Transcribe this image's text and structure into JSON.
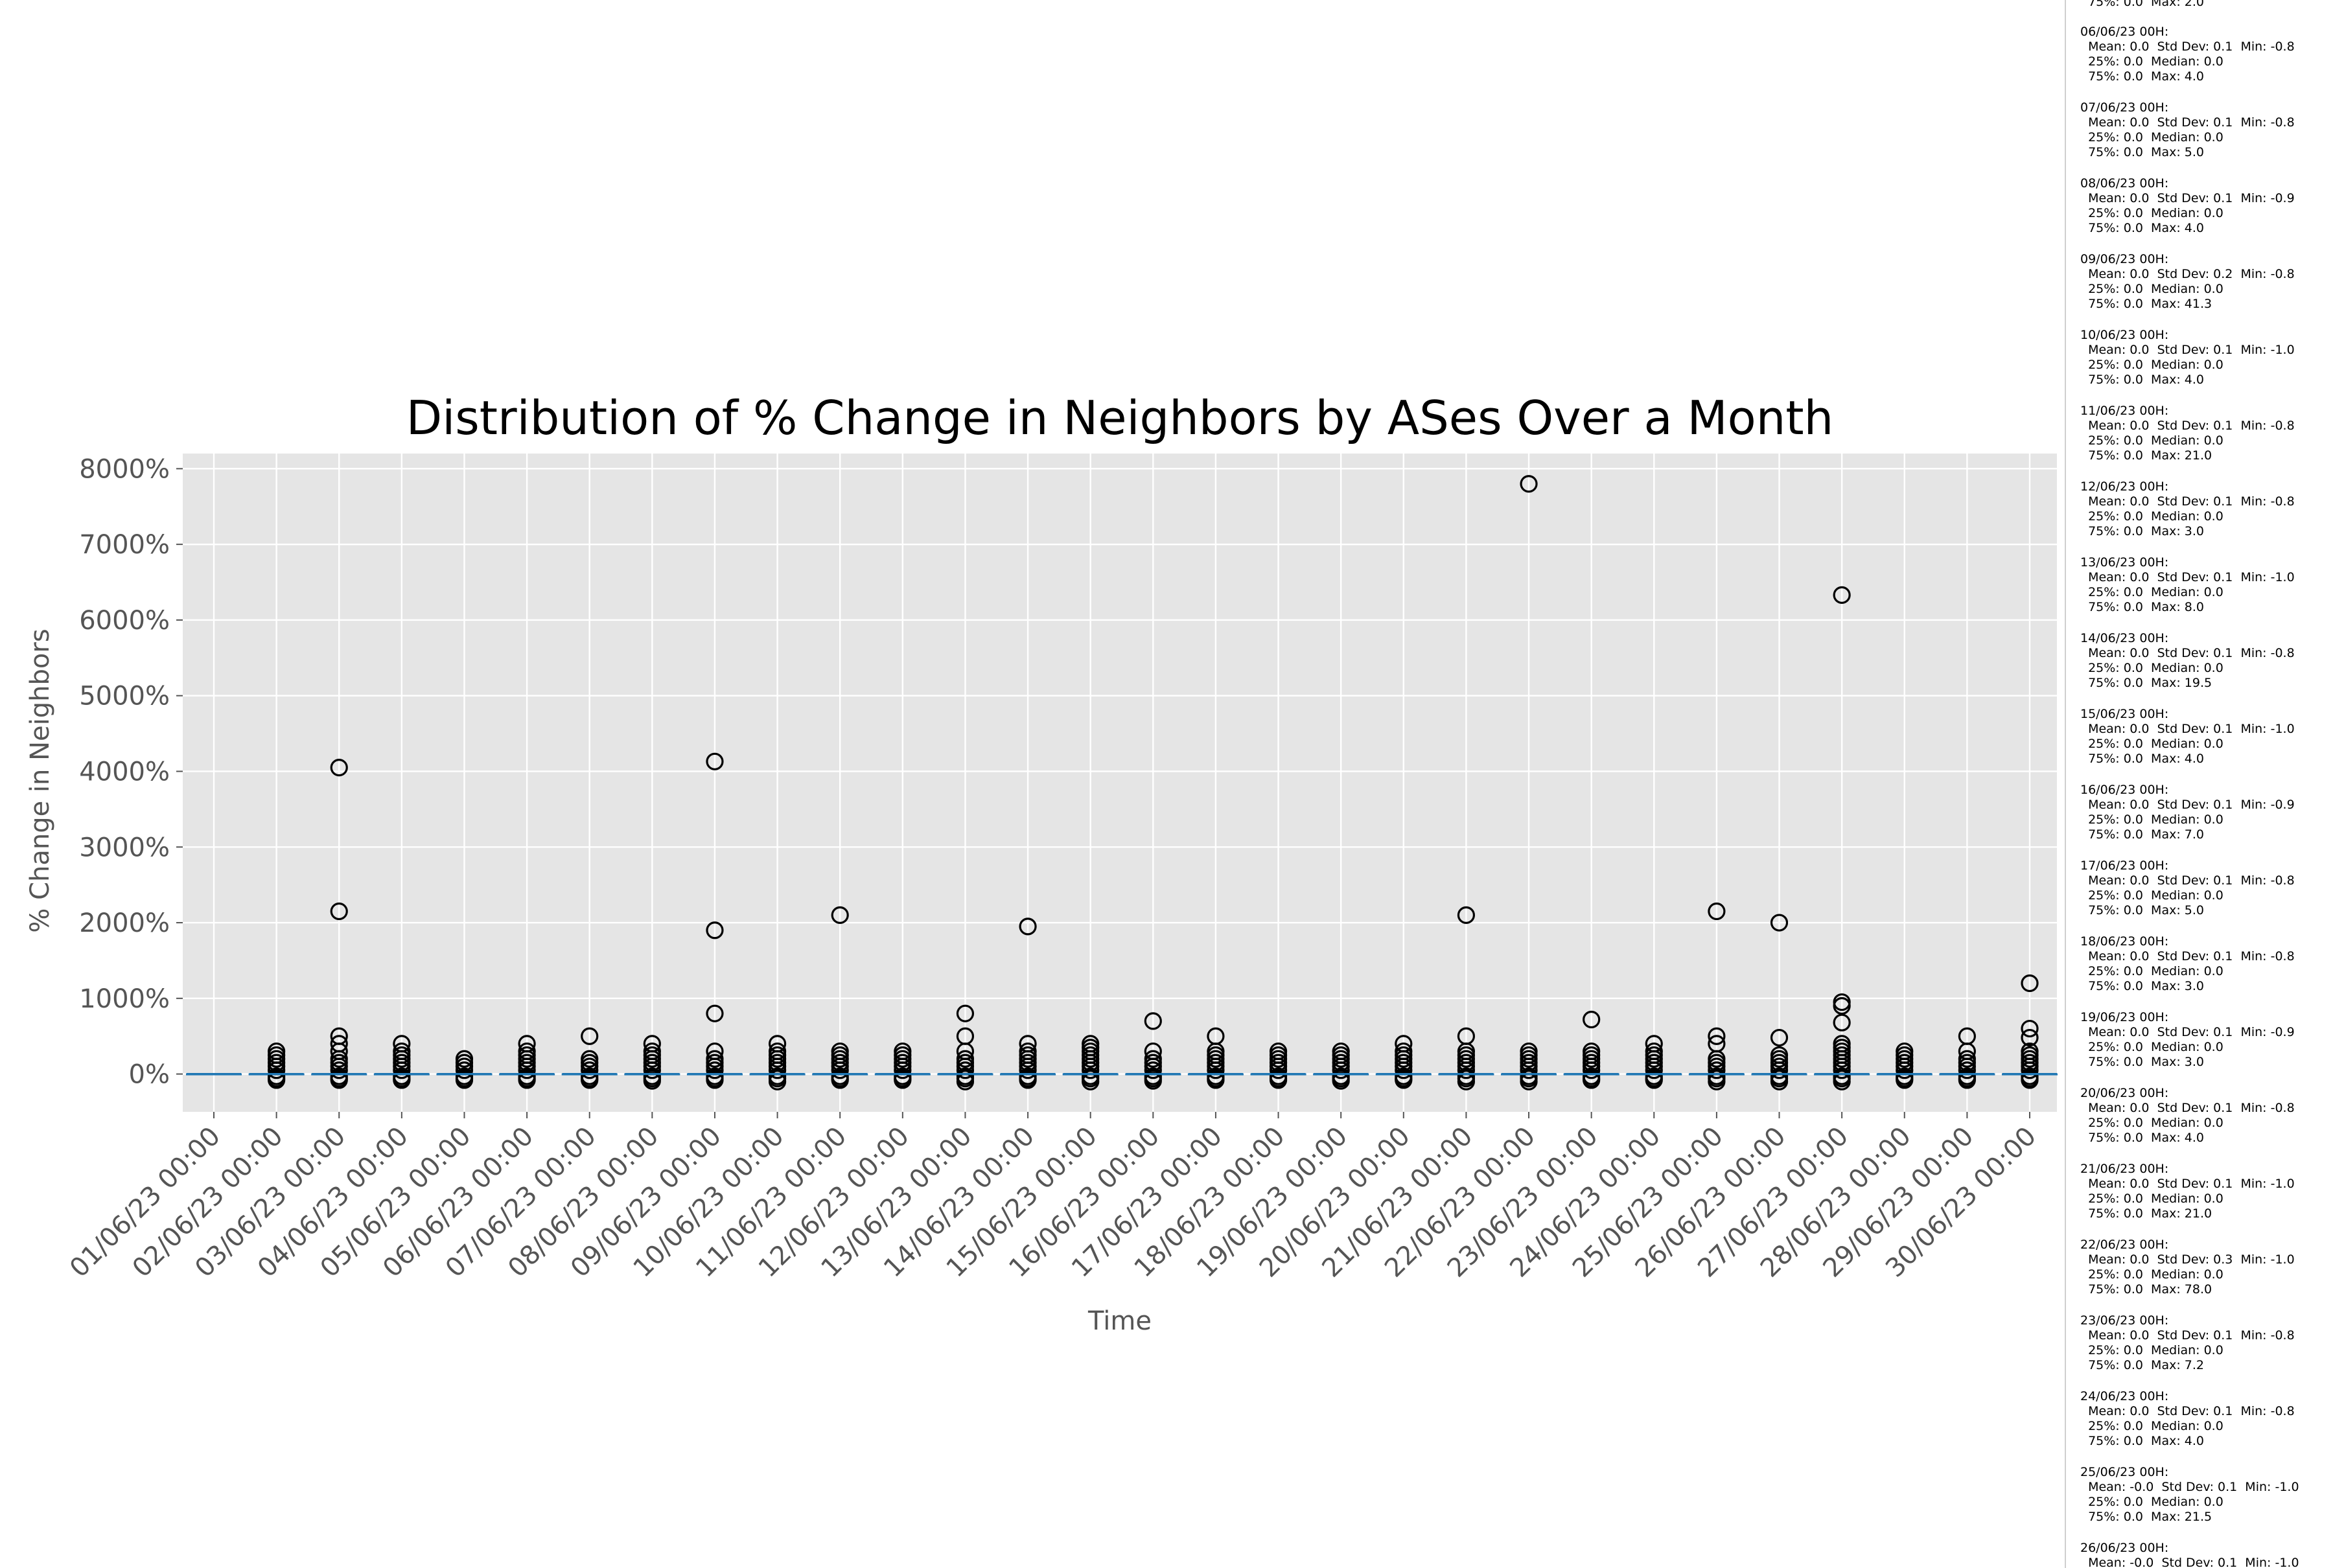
{
  "colors": {
    "plot_background": "#e5e5e5",
    "grid": "#ffffff",
    "median_line": "#1f77b4",
    "box_edge": "#1f77b4",
    "flier_edge": "#000000",
    "tick_text": "#555555"
  },
  "chart_data": {
    "type": "box",
    "title": "Distribution of % Change in Neighbors by ASes Over a Month",
    "xlabel": "Time",
    "ylabel": "% Change in Neighbors",
    "ylim": [
      -500,
      8200
    ],
    "yticks": [
      0,
      1000,
      2000,
      3000,
      4000,
      5000,
      6000,
      7000,
      8000
    ],
    "ytick_labels": [
      "0%",
      "1000%",
      "2000%",
      "3000%",
      "4000%",
      "5000%",
      "6000%",
      "7000%",
      "8000%"
    ],
    "grid": true,
    "categories": [
      "01/06/23 00:00",
      "02/06/23 00:00",
      "03/06/23 00:00",
      "04/06/23 00:00",
      "05/06/23 00:00",
      "06/06/23 00:00",
      "07/06/23 00:00",
      "08/06/23 00:00",
      "09/06/23 00:00",
      "10/06/23 00:00",
      "11/06/23 00:00",
      "12/06/23 00:00",
      "13/06/23 00:00",
      "14/06/23 00:00",
      "15/06/23 00:00",
      "16/06/23 00:00",
      "17/06/23 00:00",
      "18/06/23 00:00",
      "19/06/23 00:00",
      "20/06/23 00:00",
      "21/06/23 00:00",
      "22/06/23 00:00",
      "23/06/23 00:00",
      "24/06/23 00:00",
      "25/06/23 00:00",
      "26/06/23 00:00",
      "27/06/23 00:00",
      "28/06/23 00:00",
      "29/06/23 00:00",
      "30/06/23 00:00"
    ],
    "boxes": [
      {
        "median": 0,
        "q1": 0,
        "q3": 0,
        "whisker_low": 0,
        "whisker_high": 0,
        "fliers": []
      },
      {
        "median": 0,
        "q1": 0,
        "q3": 0,
        "whisker_low": 0,
        "whisker_high": 0,
        "fliers": [
          300,
          250,
          200,
          150,
          100,
          50,
          -30,
          -60,
          -80
        ]
      },
      {
        "median": 0,
        "q1": 0,
        "q3": 0,
        "whisker_low": 0,
        "whisker_high": 0,
        "fliers": [
          4050,
          2150,
          500,
          400,
          300,
          200,
          150,
          100,
          50,
          -30,
          -60,
          -80
        ]
      },
      {
        "median": 0,
        "q1": 0,
        "q3": 0,
        "whisker_low": 0,
        "whisker_high": 0,
        "fliers": [
          400,
          300,
          250,
          200,
          150,
          100,
          50,
          -30,
          -60,
          -80
        ]
      },
      {
        "median": 0,
        "q1": 0,
        "q3": 0,
        "whisker_low": 0,
        "whisker_high": 0,
        "fliers": [
          200,
          150,
          100,
          50,
          -30,
          -60,
          -80
        ]
      },
      {
        "median": 0,
        "q1": 0,
        "q3": 0,
        "whisker_low": 0,
        "whisker_high": 0,
        "fliers": [
          400,
          300,
          250,
          200,
          150,
          100,
          50,
          -30,
          -60,
          -80
        ]
      },
      {
        "median": 0,
        "q1": 0,
        "q3": 0,
        "whisker_low": 0,
        "whisker_high": 0,
        "fliers": [
          500,
          200,
          150,
          100,
          50,
          -30,
          -60,
          -80
        ]
      },
      {
        "median": 0,
        "q1": 0,
        "q3": 0,
        "whisker_low": 0,
        "whisker_high": 0,
        "fliers": [
          400,
          300,
          250,
          200,
          150,
          100,
          50,
          -30,
          -60,
          -90
        ]
      },
      {
        "median": 0,
        "q1": 0,
        "q3": 0,
        "whisker_low": 0,
        "whisker_high": 0,
        "fliers": [
          4130,
          1900,
          800,
          300,
          200,
          150,
          100,
          50,
          -30,
          -60,
          -80
        ]
      },
      {
        "median": 0,
        "q1": 0,
        "q3": 0,
        "whisker_low": 0,
        "whisker_high": 0,
        "fliers": [
          400,
          300,
          250,
          200,
          150,
          100,
          50,
          -30,
          -60,
          -100
        ]
      },
      {
        "median": 0,
        "q1": 0,
        "q3": 0,
        "whisker_low": 0,
        "whisker_high": 0,
        "fliers": [
          2100,
          300,
          250,
          200,
          150,
          100,
          50,
          -30,
          -60,
          -80
        ]
      },
      {
        "median": 0,
        "q1": 0,
        "q3": 0,
        "whisker_low": 0,
        "whisker_high": 0,
        "fliers": [
          300,
          250,
          200,
          150,
          100,
          50,
          -30,
          -60,
          -80
        ]
      },
      {
        "median": 0,
        "q1": 0,
        "q3": 0,
        "whisker_low": 0,
        "whisker_high": 0,
        "fliers": [
          800,
          500,
          300,
          200,
          150,
          100,
          50,
          -30,
          -60,
          -100
        ]
      },
      {
        "median": 0,
        "q1": 0,
        "q3": 0,
        "whisker_low": 0,
        "whisker_high": 0,
        "fliers": [
          1950,
          400,
          300,
          250,
          200,
          150,
          100,
          50,
          -30,
          -60,
          -80
        ]
      },
      {
        "median": 0,
        "q1": 0,
        "q3": 0,
        "whisker_low": 0,
        "whisker_high": 0,
        "fliers": [
          400,
          350,
          300,
          250,
          200,
          150,
          100,
          50,
          -30,
          -60,
          -100
        ]
      },
      {
        "median": 0,
        "q1": 0,
        "q3": 0,
        "whisker_low": 0,
        "whisker_high": 0,
        "fliers": [
          700,
          300,
          200,
          150,
          100,
          50,
          -30,
          -60,
          -90
        ]
      },
      {
        "median": 0,
        "q1": 0,
        "q3": 0,
        "whisker_low": 0,
        "whisker_high": 0,
        "fliers": [
          500,
          300,
          250,
          200,
          150,
          100,
          50,
          -30,
          -60,
          -80
        ]
      },
      {
        "median": 0,
        "q1": 0,
        "q3": 0,
        "whisker_low": 0,
        "whisker_high": 0,
        "fliers": [
          300,
          250,
          200,
          150,
          100,
          50,
          -30,
          -60,
          -80
        ]
      },
      {
        "median": 0,
        "q1": 0,
        "q3": 0,
        "whisker_low": 0,
        "whisker_high": 0,
        "fliers": [
          300,
          250,
          200,
          150,
          100,
          50,
          -30,
          -60,
          -90
        ]
      },
      {
        "median": 0,
        "q1": 0,
        "q3": 0,
        "whisker_low": 0,
        "whisker_high": 0,
        "fliers": [
          400,
          300,
          250,
          200,
          150,
          100,
          50,
          -30,
          -60,
          -80
        ]
      },
      {
        "median": 0,
        "q1": 0,
        "q3": 0,
        "whisker_low": 0,
        "whisker_high": 0,
        "fliers": [
          2100,
          500,
          300,
          250,
          200,
          150,
          100,
          50,
          -30,
          -60,
          -100
        ]
      },
      {
        "median": 0,
        "q1": 0,
        "q3": 0,
        "whisker_low": 0,
        "whisker_high": 0,
        "fliers": [
          7800,
          300,
          250,
          200,
          150,
          100,
          50,
          -30,
          -60,
          -100
        ]
      },
      {
        "median": 0,
        "q1": 0,
        "q3": 0,
        "whisker_low": 0,
        "whisker_high": 0,
        "fliers": [
          720,
          300,
          250,
          200,
          150,
          100,
          50,
          -30,
          -60,
          -80
        ]
      },
      {
        "median": 0,
        "q1": 0,
        "q3": 0,
        "whisker_low": 0,
        "whisker_high": 0,
        "fliers": [
          400,
          300,
          250,
          200,
          150,
          100,
          50,
          -30,
          -60,
          -80
        ]
      },
      {
        "median": 0,
        "q1": 0,
        "q3": 0,
        "whisker_low": 0,
        "whisker_high": 0,
        "fliers": [
          2150,
          500,
          400,
          200,
          150,
          100,
          50,
          -30,
          -60,
          -100
        ]
      },
      {
        "median": 0,
        "q1": 0,
        "q3": 0,
        "whisker_low": 0,
        "whisker_high": 0,
        "fliers": [
          2000,
          480,
          250,
          200,
          150,
          100,
          50,
          -30,
          -60,
          -100
        ]
      },
      {
        "median": 0,
        "q1": 0,
        "q3": 0,
        "whisker_low": 0,
        "whisker_high": 0,
        "fliers": [
          6330,
          950,
          900,
          680,
          400,
          350,
          300,
          250,
          200,
          150,
          100,
          50,
          -30,
          -60,
          -100
        ]
      },
      {
        "median": 0,
        "q1": 0,
        "q3": 0,
        "whisker_low": 0,
        "whisker_high": 0,
        "fliers": [
          300,
          250,
          200,
          150,
          100,
          50,
          -30,
          -60,
          -80
        ]
      },
      {
        "median": 0,
        "q1": 0,
        "q3": 0,
        "whisker_low": 0,
        "whisker_high": 0,
        "fliers": [
          500,
          300,
          200,
          150,
          100,
          50,
          -30,
          -60,
          -80
        ]
      },
      {
        "median": 0,
        "q1": 0,
        "q3": 0,
        "whisker_low": 0,
        "whisker_high": 0,
        "fliers": [
          1200,
          600,
          480,
          300,
          250,
          200,
          150,
          100,
          50,
          -30,
          -60,
          -80
        ]
      }
    ]
  },
  "stats_panel": [
    "  75%: 0.0  Max: 2.0",
    "06/06/23 00H:\n  Mean: 0.0  Std Dev: 0.1  Min: -0.8\n  25%: 0.0  Median: 0.0\n  75%: 0.0  Max: 4.0",
    "07/06/23 00H:\n  Mean: 0.0  Std Dev: 0.1  Min: -0.8\n  25%: 0.0  Median: 0.0\n  75%: 0.0  Max: 5.0",
    "08/06/23 00H:\n  Mean: 0.0  Std Dev: 0.1  Min: -0.9\n  25%: 0.0  Median: 0.0\n  75%: 0.0  Max: 4.0",
    "09/06/23 00H:\n  Mean: 0.0  Std Dev: 0.2  Min: -0.8\n  25%: 0.0  Median: 0.0\n  75%: 0.0  Max: 41.3",
    "10/06/23 00H:\n  Mean: 0.0  Std Dev: 0.1  Min: -1.0\n  25%: 0.0  Median: 0.0\n  75%: 0.0  Max: 4.0",
    "11/06/23 00H:\n  Mean: 0.0  Std Dev: 0.1  Min: -0.8\n  25%: 0.0  Median: 0.0\n  75%: 0.0  Max: 21.0",
    "12/06/23 00H:\n  Mean: 0.0  Std Dev: 0.1  Min: -0.8\n  25%: 0.0  Median: 0.0\n  75%: 0.0  Max: 3.0",
    "13/06/23 00H:\n  Mean: 0.0  Std Dev: 0.1  Min: -1.0\n  25%: 0.0  Median: 0.0\n  75%: 0.0  Max: 8.0",
    "14/06/23 00H:\n  Mean: 0.0  Std Dev: 0.1  Min: -0.8\n  25%: 0.0  Median: 0.0\n  75%: 0.0  Max: 19.5",
    "15/06/23 00H:\n  Mean: 0.0  Std Dev: 0.1  Min: -1.0\n  25%: 0.0  Median: 0.0\n  75%: 0.0  Max: 4.0",
    "16/06/23 00H:\n  Mean: 0.0  Std Dev: 0.1  Min: -0.9\n  25%: 0.0  Median: 0.0\n  75%: 0.0  Max: 7.0",
    "17/06/23 00H:\n  Mean: 0.0  Std Dev: 0.1  Min: -0.8\n  25%: 0.0  Median: 0.0\n  75%: 0.0  Max: 5.0",
    "18/06/23 00H:\n  Mean: 0.0  Std Dev: 0.1  Min: -0.8\n  25%: 0.0  Median: 0.0\n  75%: 0.0  Max: 3.0",
    "19/06/23 00H:\n  Mean: 0.0  Std Dev: 0.1  Min: -0.9\n  25%: 0.0  Median: 0.0\n  75%: 0.0  Max: 3.0",
    "20/06/23 00H:\n  Mean: 0.0  Std Dev: 0.1  Min: -0.8\n  25%: 0.0  Median: 0.0\n  75%: 0.0  Max: 4.0",
    "21/06/23 00H:\n  Mean: 0.0  Std Dev: 0.1  Min: -1.0\n  25%: 0.0  Median: 0.0\n  75%: 0.0  Max: 21.0",
    "22/06/23 00H:\n  Mean: 0.0  Std Dev: 0.3  Min: -1.0\n  25%: 0.0  Median: 0.0\n  75%: 0.0  Max: 78.0",
    "23/06/23 00H:\n  Mean: 0.0  Std Dev: 0.1  Min: -0.8\n  25%: 0.0  Median: 0.0\n  75%: 0.0  Max: 7.2",
    "24/06/23 00H:\n  Mean: 0.0  Std Dev: 0.1  Min: -0.8\n  25%: 0.0  Median: 0.0\n  75%: 0.0  Max: 4.0",
    "25/06/23 00H:\n  Mean: -0.0  Std Dev: 0.1  Min: -1.0\n  25%: 0.0  Median: 0.0\n  75%: 0.0  Max: 21.5",
    "26/06/23 00H:\n  Mean: -0.0  Std Dev: 0.1  Min: -1.0"
  ]
}
